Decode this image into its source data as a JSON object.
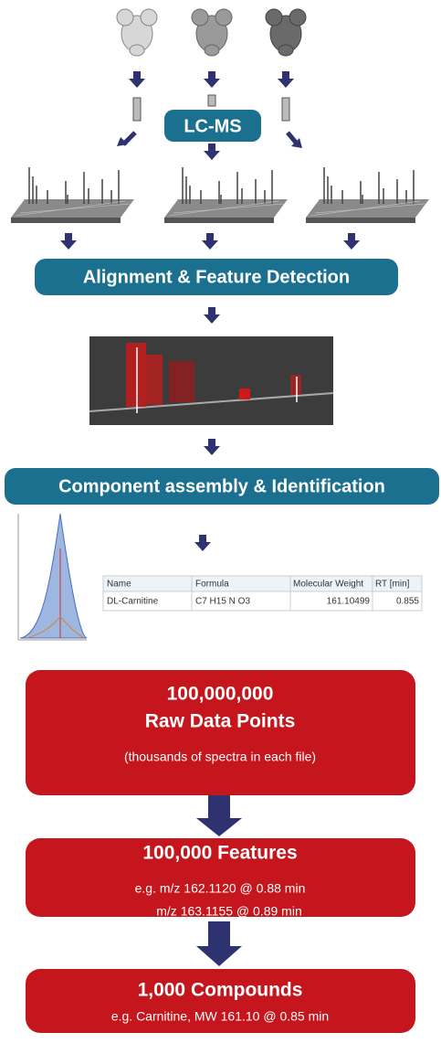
{
  "pipeline": {
    "lcms": "LC-MS",
    "alignment": "Alignment & Feature Detection",
    "component": "Component assembly & Identification"
  },
  "table": {
    "header": [
      "Name",
      "Formula",
      "Molecular Weight",
      "RT [min]"
    ],
    "rows": [
      [
        "DL-Carnitine",
        "C7 H15 N O3",
        "161.10499",
        "0.855"
      ]
    ]
  },
  "boxes": [
    {
      "title": "100,000,000",
      "subtitle": "Raw Data Points",
      "note": "(thousands of spectra in each file)"
    },
    {
      "title": "100,000 Features",
      "lines": [
        "e.g. m/z 162.1120 @ 0.88 min",
        "m/z 163.1155 @ 0.89 min"
      ]
    },
    {
      "title": "1,000 Compounds",
      "lines": [
        "e.g. Carnitine, MW 161.10 @ 0.85 min"
      ]
    }
  ]
}
